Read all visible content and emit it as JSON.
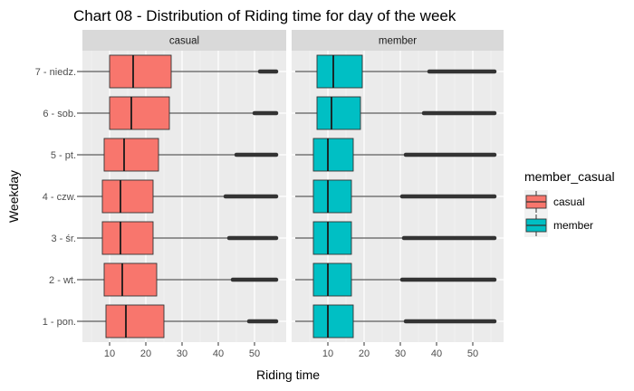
{
  "chart_data": {
    "type": "boxplot",
    "title": "Chart 08 - Distribution of Riding time for day of the week",
    "xlabel": "Riding time",
    "ylabel": "Weekday",
    "xlim": [
      1,
      57
    ],
    "xticks": [
      10,
      20,
      30,
      40,
      50
    ],
    "categories": [
      "7 - niedz.",
      "6 - sob.",
      "5 - pt.",
      "4 - czw.",
      "3 - śr.",
      "2 - wt.",
      "1 - pon."
    ],
    "legend": {
      "title": "member_casual",
      "position": "right",
      "entries": [
        {
          "name": "casual",
          "color": "#F8766D"
        },
        {
          "name": "member",
          "color": "#00BFC4"
        }
      ]
    },
    "grid": true,
    "panels": [
      {
        "label": "casual",
        "color": "#F8766D",
        "boxes": [
          {
            "category": "7 - niedz.",
            "whisker_low": 1,
            "q1": 10,
            "median": 16.5,
            "q3": 27,
            "whisker_high": 51.5,
            "outlier_max": 56
          },
          {
            "category": "6 - sob.",
            "whisker_low": 1,
            "q1": 10,
            "median": 16,
            "q3": 26.5,
            "whisker_high": 50,
            "outlier_max": 56
          },
          {
            "category": "5 - pt.",
            "whisker_low": 1,
            "q1": 8.5,
            "median": 14,
            "q3": 23.5,
            "whisker_high": 45,
            "outlier_max": 56
          },
          {
            "category": "4 - czw.",
            "whisker_low": 1,
            "q1": 8,
            "median": 13,
            "q3": 22,
            "whisker_high": 42,
            "outlier_max": 56
          },
          {
            "category": "3 - śr.",
            "whisker_low": 1,
            "q1": 8,
            "median": 13,
            "q3": 22,
            "whisker_high": 43,
            "outlier_max": 56
          },
          {
            "category": "2 - wt.",
            "whisker_low": 1,
            "q1": 8.5,
            "median": 13.5,
            "q3": 23,
            "whisker_high": 44,
            "outlier_max": 56
          },
          {
            "category": "1 - pon.",
            "whisker_low": 1,
            "q1": 9,
            "median": 14.5,
            "q3": 25,
            "whisker_high": 48.5,
            "outlier_max": 56
          }
        ]
      },
      {
        "label": "member",
        "color": "#00BFC4",
        "boxes": [
          {
            "category": "7 - niedz.",
            "whisker_low": 1,
            "q1": 7,
            "median": 11.5,
            "q3": 19.5,
            "whisker_high": 38,
            "outlier_max": 56
          },
          {
            "category": "6 - sob.",
            "whisker_low": 1,
            "q1": 7,
            "median": 11,
            "q3": 19,
            "whisker_high": 36.5,
            "outlier_max": 56
          },
          {
            "category": "5 - pt.",
            "whisker_low": 1,
            "q1": 6,
            "median": 10,
            "q3": 17,
            "whisker_high": 31.5,
            "outlier_max": 56
          },
          {
            "category": "4 - czw.",
            "whisker_low": 1,
            "q1": 6,
            "median": 10,
            "q3": 16.5,
            "whisker_high": 30.5,
            "outlier_max": 56
          },
          {
            "category": "3 - śr.",
            "whisker_low": 1,
            "q1": 6,
            "median": 10,
            "q3": 16.5,
            "whisker_high": 31,
            "outlier_max": 56
          },
          {
            "category": "2 - wt.",
            "whisker_low": 1,
            "q1": 6,
            "median": 10,
            "q3": 16.5,
            "whisker_high": 30.5,
            "outlier_max": 56
          },
          {
            "category": "1 - pon.",
            "whisker_low": 1,
            "q1": 6,
            "median": 10,
            "q3": 17,
            "whisker_high": 31.5,
            "outlier_max": 56
          }
        ]
      }
    ]
  }
}
